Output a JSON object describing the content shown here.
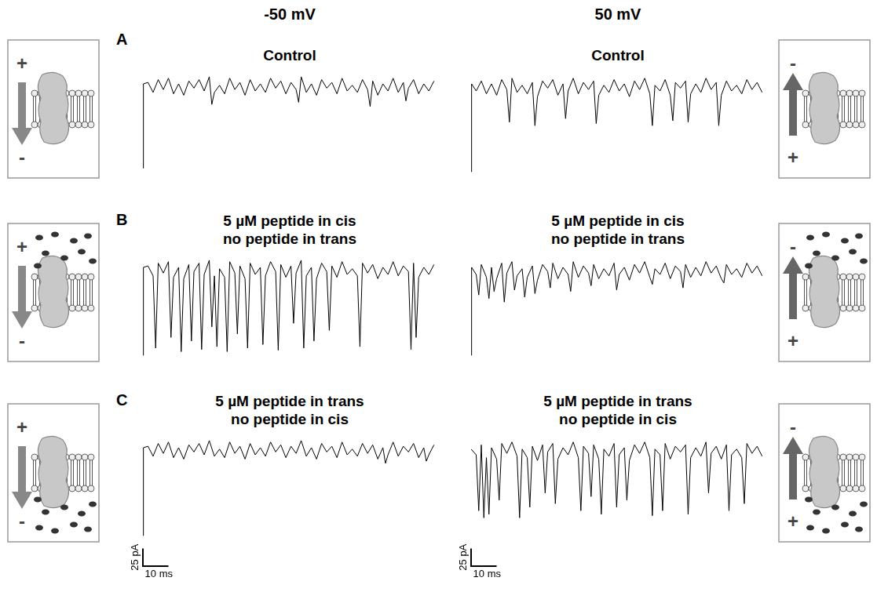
{
  "column_titles": [
    "-50 mV",
    "50 mV"
  ],
  "panel_letters": [
    "A",
    "B",
    "C"
  ],
  "schematic_signs": [
    [
      "+",
      "-"
    ],
    [
      "-",
      "+"
    ]
  ],
  "scale_bar": {
    "y": 25,
    "y_label": "25 pA",
    "x": 10,
    "x_label": "10 ms"
  },
  "chart_data": [
    {
      "type": "line",
      "title": [
        "Control"
      ],
      "color": "#000000",
      "xlim": [
        0,
        115
      ],
      "ylim": [
        -130,
        25
      ],
      "tick_labels": false,
      "grid": false,
      "x": [
        0,
        0.2,
        2,
        4,
        6,
        8,
        10,
        12,
        14,
        16,
        18,
        20,
        22,
        24,
        26,
        27,
        28,
        30,
        32,
        34,
        36,
        38,
        40,
        42,
        44,
        46,
        48,
        50,
        52,
        54,
        56,
        58,
        60,
        61,
        62,
        64,
        66,
        68,
        70,
        72,
        74,
        76,
        78,
        80,
        82,
        84,
        86,
        88,
        89,
        90,
        92,
        94,
        96,
        98,
        100,
        102,
        103,
        104,
        106,
        108,
        110,
        112,
        114
      ],
      "values": [
        -115,
        4,
        6,
        -8,
        10,
        -4,
        12,
        -10,
        4,
        -12,
        8,
        -2,
        10,
        -6,
        14,
        -25,
        -8,
        2,
        -10,
        12,
        -4,
        6,
        -12,
        10,
        -6,
        4,
        -8,
        12,
        -2,
        8,
        -10,
        6,
        -4,
        -22,
        14,
        -8,
        4,
        -12,
        10,
        -2,
        6,
        -10,
        12,
        -6,
        2,
        -8,
        10,
        -4,
        -28,
        8,
        -12,
        4,
        -6,
        12,
        -8,
        6,
        -20,
        -2,
        10,
        -10,
        4,
        -6,
        8
      ]
    },
    {
      "type": "line",
      "title": [
        "Control"
      ],
      "color": "#000000",
      "xlim": [
        0,
        115
      ],
      "ylim": [
        -130,
        25
      ],
      "tick_labels": false,
      "grid": false,
      "x": [
        0,
        0.2,
        2,
        4,
        6,
        8,
        10,
        12,
        14,
        15,
        16,
        18,
        20,
        22,
        24,
        25,
        26,
        28,
        30,
        32,
        34,
        36,
        37,
        38,
        40,
        42,
        44,
        46,
        48,
        49,
        50,
        52,
        54,
        56,
        58,
        60,
        62,
        64,
        66,
        68,
        70,
        71,
        72,
        74,
        76,
        78,
        79,
        80,
        82,
        84,
        85,
        86,
        88,
        90,
        92,
        94,
        96,
        97,
        98,
        100,
        102,
        104,
        106,
        108,
        110,
        112,
        114
      ],
      "values": [
        -120,
        4,
        -6,
        8,
        -10,
        4,
        -12,
        10,
        -4,
        -50,
        12,
        -8,
        2,
        -10,
        6,
        -55,
        -14,
        8,
        -2,
        10,
        -12,
        4,
        -45,
        -6,
        12,
        -10,
        6,
        -4,
        8,
        -52,
        -12,
        2,
        -8,
        10,
        -6,
        4,
        -14,
        8,
        -4,
        12,
        -10,
        -55,
        2,
        -6,
        10,
        -12,
        -48,
        6,
        -2,
        8,
        -50,
        -10,
        4,
        -8,
        12,
        -4,
        6,
        -55,
        -12,
        8,
        -6,
        2,
        -10,
        10,
        -4,
        6,
        -8
      ]
    },
    {
      "type": "line",
      "title": [
        "5 µM peptide in cis",
        "no peptide in trans"
      ],
      "color": "#000000",
      "xlim": [
        0,
        115
      ],
      "ylim": [
        -130,
        25
      ],
      "tick_labels": false,
      "grid": false,
      "x": [
        0,
        0.2,
        2,
        4,
        5,
        6,
        8,
        10,
        11,
        12,
        14,
        15,
        16,
        18,
        19,
        20,
        22,
        23,
        24,
        26,
        27,
        28,
        29,
        30,
        32,
        33,
        34,
        36,
        37,
        38,
        40,
        41,
        42,
        44,
        46,
        47,
        48,
        50,
        52,
        53,
        54,
        56,
        58,
        59,
        60,
        62,
        63,
        64,
        66,
        67,
        68,
        70,
        72,
        73,
        74,
        76,
        78,
        80,
        82,
        84,
        85,
        86,
        88,
        90,
        92,
        94,
        96,
        98,
        100,
        102,
        104,
        105,
        106,
        107,
        108,
        110,
        112,
        114
      ],
      "values": [
        -120,
        4,
        6,
        -8,
        -110,
        10,
        -4,
        12,
        -95,
        -10,
        4,
        -115,
        -12,
        8,
        -100,
        -2,
        10,
        -112,
        -6,
        14,
        -80,
        -8,
        -108,
        2,
        -10,
        -115,
        12,
        -4,
        -90,
        6,
        -12,
        -110,
        10,
        -6,
        4,
        -105,
        -8,
        12,
        -2,
        -113,
        8,
        -10,
        6,
        -75,
        -4,
        14,
        -110,
        -8,
        4,
        -100,
        -12,
        10,
        -2,
        -85,
        6,
        -10,
        12,
        -6,
        2,
        -8,
        -108,
        10,
        -4,
        8,
        -12,
        4,
        -6,
        12,
        -8,
        6,
        -2,
        -112,
        10,
        -95,
        -10,
        4,
        -6,
        8
      ]
    },
    {
      "type": "line",
      "title": [
        "5 µM peptide in cis",
        "no peptide in trans"
      ],
      "color": "#000000",
      "xlim": [
        0,
        115
      ],
      "ylim": [
        -130,
        25
      ],
      "tick_labels": false,
      "grid": false,
      "x": [
        0,
        0.2,
        2,
        3,
        4,
        6,
        7,
        8,
        9,
        10,
        12,
        13,
        14,
        16,
        17,
        18,
        20,
        21,
        22,
        24,
        25,
        26,
        28,
        30,
        31,
        32,
        34,
        36,
        38,
        39,
        40,
        42,
        44,
        46,
        47,
        48,
        50,
        52,
        54,
        56,
        57,
        58,
        60,
        62,
        64,
        66,
        68,
        70,
        71,
        72,
        74,
        76,
        78,
        80,
        82,
        83,
        84,
        86,
        88,
        90,
        92,
        94,
        96,
        98,
        99,
        100,
        102,
        104,
        106,
        108,
        110,
        112,
        114
      ],
      "values": [
        -120,
        4,
        -6,
        -35,
        8,
        -10,
        -40,
        4,
        -30,
        -12,
        10,
        -45,
        -4,
        12,
        -28,
        -8,
        2,
        -38,
        -10,
        6,
        -33,
        -14,
        8,
        -2,
        -25,
        10,
        -12,
        4,
        -6,
        -30,
        12,
        -10,
        6,
        -4,
        -22,
        8,
        -12,
        2,
        -8,
        10,
        -28,
        -6,
        4,
        -14,
        8,
        -4,
        12,
        -10,
        -20,
        2,
        -6,
        10,
        -12,
        6,
        -2,
        -25,
        8,
        -10,
        4,
        -8,
        12,
        -4,
        6,
        -12,
        -18,
        8,
        -6,
        2,
        -10,
        10,
        -4,
        6,
        -8
      ]
    },
    {
      "type": "line",
      "title": [
        "5 µM peptide in trans",
        "no peptide in cis"
      ],
      "color": "#000000",
      "xlim": [
        0,
        115
      ],
      "ylim": [
        -130,
        25
      ],
      "tick_labels": false,
      "grid": false,
      "x": [
        0,
        0.2,
        2,
        4,
        6,
        8,
        10,
        12,
        14,
        16,
        18,
        20,
        22,
        24,
        26,
        28,
        30,
        32,
        34,
        36,
        38,
        40,
        42,
        44,
        46,
        48,
        50,
        52,
        54,
        56,
        58,
        60,
        62,
        64,
        66,
        68,
        70,
        72,
        74,
        76,
        78,
        80,
        82,
        84,
        86,
        88,
        90,
        92,
        94,
        95,
        96,
        98,
        100,
        102,
        104,
        106,
        108,
        110,
        111,
        112,
        114
      ],
      "values": [
        -120,
        4,
        6,
        -8,
        10,
        -4,
        12,
        -10,
        4,
        -12,
        8,
        -2,
        10,
        -6,
        14,
        -8,
        2,
        -10,
        12,
        -4,
        6,
        -12,
        10,
        -6,
        4,
        -8,
        12,
        -2,
        8,
        -10,
        6,
        -4,
        14,
        -8,
        4,
        -12,
        10,
        -2,
        6,
        -10,
        12,
        -6,
        2,
        -8,
        10,
        -4,
        8,
        -12,
        4,
        -18,
        -6,
        12,
        -8,
        6,
        -2,
        10,
        -10,
        4,
        -15,
        -6,
        8
      ]
    },
    {
      "type": "line",
      "title": [
        "5 µM peptide in trans",
        "no peptide in cis"
      ],
      "color": "#000000",
      "xlim": [
        0,
        115
      ],
      "ylim": [
        -130,
        25
      ],
      "tick_labels": false,
      "grid": false,
      "x": [
        0,
        2,
        3,
        4,
        5,
        6,
        7,
        8,
        10,
        11,
        12,
        14,
        16,
        18,
        19,
        20,
        22,
        23,
        24,
        26,
        28,
        29,
        30,
        32,
        33,
        34,
        36,
        38,
        40,
        42,
        43,
        44,
        46,
        47,
        48,
        50,
        51,
        52,
        54,
        56,
        57,
        58,
        60,
        61,
        62,
        64,
        66,
        68,
        70,
        71,
        72,
        74,
        75,
        76,
        78,
        80,
        82,
        84,
        85,
        86,
        88,
        90,
        92,
        93,
        94,
        96,
        98,
        100,
        101,
        102,
        104,
        106,
        107,
        108,
        110,
        112,
        114
      ],
      "values": [
        2,
        -6,
        -85,
        8,
        -95,
        -10,
        -90,
        4,
        -12,
        -70,
        10,
        -4,
        12,
        -8,
        -95,
        2,
        -10,
        -80,
        6,
        -14,
        8,
        -60,
        -2,
        10,
        -75,
        -12,
        4,
        -6,
        12,
        -10,
        -85,
        6,
        -4,
        -65,
        8,
        -12,
        -90,
        2,
        -8,
        10,
        -80,
        -6,
        4,
        -70,
        -14,
        8,
        -4,
        12,
        -10,
        -92,
        2,
        -6,
        -85,
        10,
        -12,
        6,
        -2,
        8,
        -90,
        -10,
        4,
        -8,
        12,
        -60,
        -4,
        6,
        -12,
        8,
        -85,
        -6,
        2,
        -10,
        -75,
        10,
        -4,
        6,
        -8
      ]
    }
  ]
}
